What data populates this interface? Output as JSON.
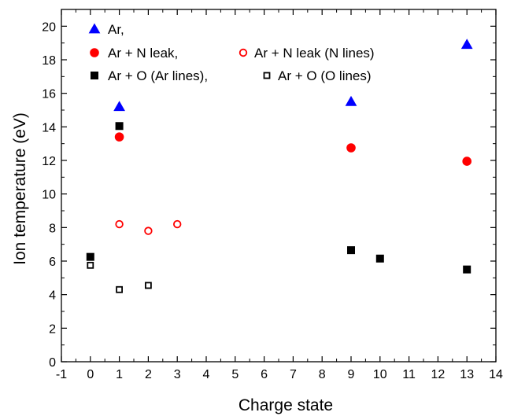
{
  "chart_data": {
    "type": "scatter",
    "title": "",
    "xlabel": "Charge state",
    "ylabel": "Ion temperature (eV)",
    "xlim": [
      -1,
      14
    ],
    "ylim": [
      0,
      21
    ],
    "x_ticks": [
      -1,
      0,
      1,
      2,
      3,
      4,
      5,
      6,
      7,
      8,
      9,
      10,
      11,
      12,
      13,
      14
    ],
    "x_tick_labels": [
      "-1",
      "0",
      "1",
      "2",
      "3",
      "4",
      "5",
      "6",
      "7",
      "8",
      "9",
      "10",
      "11",
      "12",
      "13",
      "14"
    ],
    "y_ticks": [
      0,
      2,
      4,
      6,
      8,
      10,
      12,
      14,
      16,
      18,
      20
    ],
    "y_tick_labels": [
      "0",
      "2",
      "4",
      "6",
      "8",
      "10",
      "12",
      "14",
      "16",
      "18",
      "20"
    ],
    "grid": false,
    "legend_position": "top-left",
    "series": [
      {
        "name": "Ar,",
        "marker": "triangle",
        "filled": true,
        "color": "#0000ff",
        "points": [
          {
            "x": 1,
            "y": 15.2
          },
          {
            "x": 9,
            "y": 15.5
          },
          {
            "x": 13,
            "y": 18.9
          }
        ]
      },
      {
        "name": "Ar + N leak,",
        "marker": "circle",
        "filled": true,
        "color": "#ff0000",
        "points": [
          {
            "x": 1,
            "y": 13.4
          },
          {
            "x": 9,
            "y": 12.75
          },
          {
            "x": 13,
            "y": 11.95
          }
        ]
      },
      {
        "name": "Ar + N leak (N lines)",
        "marker": "circle",
        "filled": false,
        "color": "#ff0000",
        "points": [
          {
            "x": 1,
            "y": 8.2
          },
          {
            "x": 2,
            "y": 7.8
          },
          {
            "x": 3,
            "y": 8.2
          }
        ]
      },
      {
        "name": "Ar + O (Ar lines),",
        "marker": "square",
        "filled": true,
        "color": "#000000",
        "points": [
          {
            "x": 0,
            "y": 6.25
          },
          {
            "x": 1,
            "y": 14.05
          },
          {
            "x": 9,
            "y": 6.65
          },
          {
            "x": 10,
            "y": 6.15
          },
          {
            "x": 13,
            "y": 5.5
          }
        ]
      },
      {
        "name": "Ar + O (O lines)",
        "marker": "square",
        "filled": false,
        "color": "#000000",
        "points": [
          {
            "x": 0,
            "y": 5.75
          },
          {
            "x": 1,
            "y": 4.3
          },
          {
            "x": 2,
            "y": 4.55
          }
        ]
      }
    ]
  }
}
